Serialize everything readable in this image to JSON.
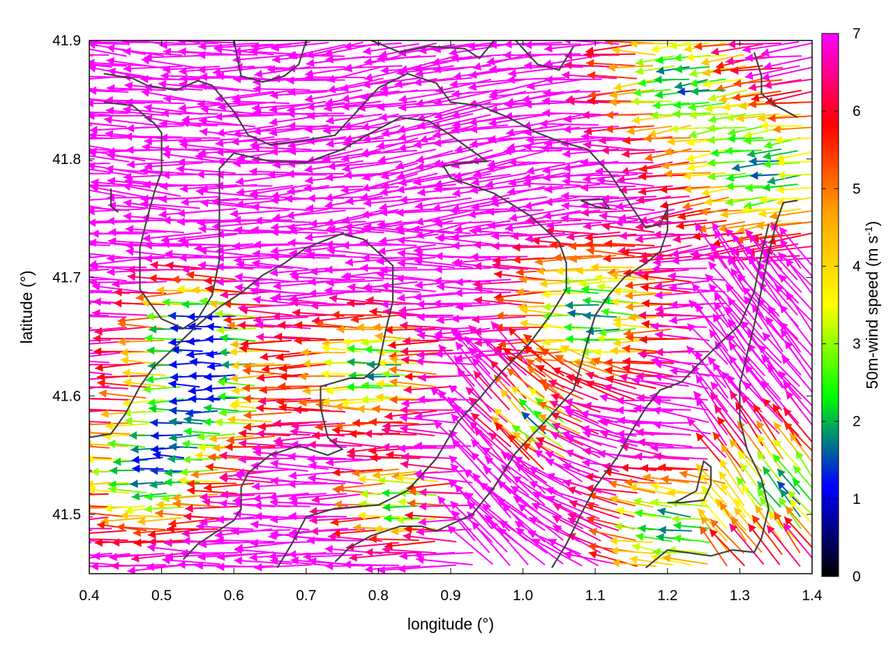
{
  "chart_data": {
    "type": "vector-field",
    "xlabel": "longitude (°)",
    "ylabel": "latitude (°)",
    "xlim": [
      0.4,
      1.4
    ],
    "ylim": [
      41.45,
      41.9
    ],
    "xticks": [
      0.4,
      0.5,
      0.6,
      0.7,
      0.8,
      0.9,
      1.0,
      1.1,
      1.2,
      1.3,
      1.4
    ],
    "xtick_labels": [
      "0.4",
      "0.5",
      "0.6",
      "0.7",
      "0.8",
      "0.9",
      "1.0",
      "1.1",
      "1.2",
      "1.3",
      "1.4"
    ],
    "yticks": [
      41.5,
      41.6,
      41.7,
      41.8,
      41.9
    ],
    "ytick_labels": [
      "41.5",
      "41.6",
      "41.7",
      "41.8",
      "41.9"
    ],
    "colorbar": {
      "label_main": "50m-wind speed (m s",
      "label_sup": "-1",
      "label_end": ")",
      "range": [
        0,
        7
      ],
      "ticks": [
        0,
        1,
        2,
        3,
        4,
        5,
        6,
        7
      ],
      "tick_labels": [
        "0",
        "1",
        "2",
        "3",
        "4",
        "5",
        "6",
        "7"
      ],
      "palette": [
        "#000000",
        "#0000ff",
        "#00ff00",
        "#ffff00",
        "#ffa500",
        "#ff0000",
        "#ff00ff"
      ]
    },
    "contour_color": "#404040",
    "contours": [
      [
        [
          0.42,
          41.872
        ],
        [
          0.46,
          41.868
        ],
        [
          0.48,
          41.862
        ],
        [
          0.52,
          41.858
        ],
        [
          0.55,
          41.866
        ],
        [
          0.57,
          41.862
        ],
        [
          0.6,
          41.84
        ],
        [
          0.62,
          41.82
        ],
        [
          0.65,
          41.812
        ],
        [
          0.7,
          41.816
        ],
        [
          0.74,
          41.82
        ],
        [
          0.77,
          41.84
        ],
        [
          0.8,
          41.86
        ],
        [
          0.84,
          41.872
        ],
        [
          0.88,
          41.864
        ],
        [
          0.9,
          41.848
        ],
        [
          0.94,
          41.845
        ],
        [
          0.98,
          41.835
        ],
        [
          1.02,
          41.822
        ],
        [
          1.05,
          41.815
        ],
        [
          1.09,
          41.808
        ],
        [
          1.12,
          41.788
        ],
        [
          1.15,
          41.76
        ],
        [
          1.17,
          41.742
        ],
        [
          1.19,
          41.745
        ],
        [
          1.2,
          41.758
        ]
      ],
      [
        [
          0.42,
          41.848
        ],
        [
          0.46,
          41.845
        ],
        [
          0.49,
          41.83
        ],
        [
          0.5,
          41.822
        ],
        [
          0.5,
          41.79
        ],
        [
          0.49,
          41.772
        ],
        [
          0.48,
          41.75
        ],
        [
          0.47,
          41.725
        ],
        [
          0.47,
          41.69
        ],
        [
          0.5,
          41.665
        ],
        [
          0.53,
          41.657
        ],
        [
          0.55,
          41.665
        ],
        [
          0.57,
          41.685
        ],
        [
          0.58,
          41.715
        ],
        [
          0.58,
          41.76
        ],
        [
          0.58,
          41.792
        ],
        [
          0.6,
          41.805
        ],
        [
          0.65,
          41.798
        ],
        [
          0.7,
          41.797
        ],
        [
          0.75,
          41.808
        ],
        [
          0.79,
          41.822
        ],
        [
          0.83,
          41.835
        ],
        [
          0.87,
          41.832
        ],
        [
          0.9,
          41.82
        ],
        [
          0.95,
          41.798
        ],
        [
          0.92,
          41.797
        ],
        [
          0.89,
          41.794
        ],
        [
          0.9,
          41.784
        ],
        [
          0.96,
          41.771
        ],
        [
          1.01,
          41.752
        ],
        [
          1.05,
          41.73
        ],
        [
          1.06,
          41.712
        ],
        [
          1.06,
          41.69
        ],
        [
          1.04,
          41.67
        ],
        [
          1.01,
          41.645
        ],
        [
          0.97,
          41.62
        ],
        [
          0.94,
          41.598
        ],
        [
          0.91,
          41.578
        ],
        [
          0.88,
          41.547
        ],
        [
          0.84,
          41.52
        ],
        [
          0.8,
          41.508
        ],
        [
          0.74,
          41.505
        ],
        [
          0.7,
          41.498
        ],
        [
          0.68,
          41.475
        ],
        [
          0.66,
          41.455
        ]
      ],
      [
        [
          0.4,
          41.565
        ],
        [
          0.43,
          41.568
        ],
        [
          0.45,
          41.585
        ],
        [
          0.47,
          41.608
        ],
        [
          0.49,
          41.625
        ],
        [
          0.52,
          41.642
        ],
        [
          0.55,
          41.66
        ],
        [
          0.58,
          41.675
        ],
        [
          0.61,
          41.687
        ],
        [
          0.63,
          41.697
        ],
        [
          0.64,
          41.702
        ],
        [
          0.67,
          41.712
        ],
        [
          0.7,
          41.725
        ],
        [
          0.75,
          41.737
        ],
        [
          0.78,
          41.732
        ],
        [
          0.82,
          41.71
        ],
        [
          0.82,
          41.68
        ],
        [
          0.81,
          41.655
        ],
        [
          0.8,
          41.625
        ],
        [
          0.78,
          41.615
        ],
        [
          0.76,
          41.615
        ],
        [
          0.72,
          41.608
        ],
        [
          0.72,
          41.59
        ],
        [
          0.73,
          41.565
        ],
        [
          0.75,
          41.555
        ],
        [
          0.73,
          41.55
        ],
        [
          0.69,
          41.558
        ],
        [
          0.65,
          41.55
        ],
        [
          0.62,
          41.535
        ],
        [
          0.61,
          41.523
        ],
        [
          0.61,
          41.505
        ],
        [
          0.6,
          41.495
        ],
        [
          0.58,
          41.487
        ],
        [
          0.55,
          41.475
        ],
        [
          0.53,
          41.462
        ]
      ],
      [
        [
          0.74,
          41.46
        ],
        [
          0.76,
          41.472
        ],
        [
          0.79,
          41.482
        ],
        [
          0.83,
          41.49
        ],
        [
          0.86,
          41.49
        ],
        [
          0.88,
          41.486
        ],
        [
          0.93,
          41.5
        ],
        [
          0.96,
          41.523
        ],
        [
          0.99,
          41.552
        ],
        [
          1.03,
          41.578
        ],
        [
          1.07,
          41.605
        ],
        [
          1.08,
          41.626
        ],
        [
          1.09,
          41.648
        ],
        [
          1.1,
          41.668
        ],
        [
          1.12,
          41.686
        ],
        [
          1.14,
          41.7
        ],
        [
          1.17,
          41.712
        ],
        [
          1.19,
          41.722
        ],
        [
          1.2,
          41.74
        ],
        [
          1.2,
          41.762
        ]
      ],
      [
        [
          1.17,
          41.455
        ],
        [
          1.2,
          41.47
        ],
        [
          1.26,
          41.465
        ],
        [
          1.29,
          41.47
        ],
        [
          1.32,
          41.468
        ],
        [
          1.33,
          41.48
        ],
        [
          1.34,
          41.505
        ],
        [
          1.33,
          41.53
        ],
        [
          1.31,
          41.555
        ],
        [
          1.3,
          41.58
        ],
        [
          1.3,
          41.61
        ],
        [
          1.31,
          41.635
        ],
        [
          1.32,
          41.66
        ],
        [
          1.33,
          41.69
        ],
        [
          1.34,
          41.72
        ],
        [
          1.35,
          41.745
        ],
        [
          1.36,
          41.763
        ],
        [
          1.38,
          41.765
        ]
      ],
      [
        [
          1.04,
          41.455
        ],
        [
          1.06,
          41.475
        ],
        [
          1.08,
          41.5
        ],
        [
          1.1,
          41.523
        ],
        [
          1.13,
          41.548
        ],
        [
          1.15,
          41.57
        ],
        [
          1.17,
          41.59
        ],
        [
          1.19,
          41.605
        ],
        [
          1.22,
          41.612
        ],
        [
          1.24,
          41.625
        ],
        [
          1.27,
          41.643
        ],
        [
          1.3,
          41.66
        ],
        [
          1.32,
          41.688
        ],
        [
          1.33,
          41.72
        ],
        [
          1.34,
          41.745
        ]
      ],
      [
        [
          1.2,
          41.51
        ],
        [
          1.22,
          41.51
        ],
        [
          1.25,
          41.512
        ],
        [
          1.26,
          41.525
        ],
        [
          1.26,
          41.54
        ],
        [
          1.25,
          41.545
        ],
        [
          1.24,
          41.52
        ],
        [
          1.21,
          41.51
        ]
      ],
      [
        [
          0.6,
          41.9
        ],
        [
          0.61,
          41.87
        ],
        [
          0.64,
          41.865
        ],
        [
          0.67,
          41.87
        ],
        [
          0.69,
          41.88
        ],
        [
          0.7,
          41.9
        ]
      ],
      [
        [
          0.79,
          41.9
        ],
        [
          0.83,
          41.89
        ],
        [
          0.87,
          41.895
        ],
        [
          0.92,
          41.893
        ],
        [
          0.94,
          41.885
        ],
        [
          0.96,
          41.9
        ]
      ],
      [
        [
          0.99,
          41.9
        ],
        [
          1.02,
          41.88
        ],
        [
          1.05,
          41.875
        ],
        [
          1.07,
          41.895
        ]
      ],
      [
        [
          1.32,
          41.89
        ],
        [
          1.33,
          41.87
        ],
        [
          1.33,
          41.855
        ],
        [
          1.35,
          41.845
        ],
        [
          1.38,
          41.835
        ]
      ],
      [
        [
          1.08,
          41.765
        ],
        [
          1.1,
          41.76
        ],
        [
          1.12,
          41.758
        ],
        [
          1.11,
          41.766
        ],
        [
          1.08,
          41.765
        ]
      ],
      [
        [
          0.43,
          41.775
        ],
        [
          0.43,
          41.76
        ],
        [
          0.44,
          41.755
        ]
      ]
    ]
  }
}
